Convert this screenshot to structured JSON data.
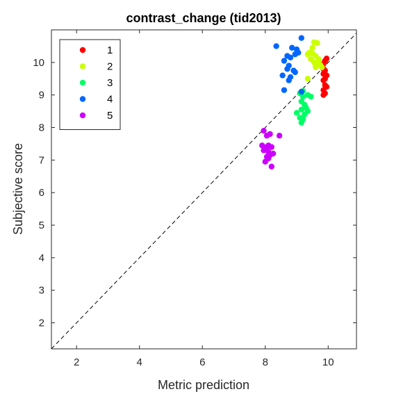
{
  "chart_data": {
    "type": "scatter",
    "title": "contrast_change (tid2013)",
    "xlabel": "Metric prediction",
    "ylabel": "Subjective score",
    "xlim": [
      1.2,
      10.9
    ],
    "ylim": [
      1.2,
      11.0
    ],
    "xticks": [
      2,
      4,
      6,
      8,
      10
    ],
    "yticks": [
      2,
      3,
      4,
      5,
      6,
      7,
      8,
      9,
      10
    ],
    "grid": false,
    "legend_position": "top-left",
    "reference_line": "y = x (dashed)",
    "series": [
      {
        "name": "1",
        "color": "#ff0000",
        "points": [
          [
            9.95,
            10.12
          ],
          [
            9.9,
            10.05
          ],
          [
            9.85,
            9.95
          ],
          [
            9.8,
            9.9
          ],
          [
            9.85,
            9.8
          ],
          [
            9.9,
            9.75
          ],
          [
            9.85,
            9.65
          ],
          [
            9.95,
            9.6
          ],
          [
            9.9,
            9.5
          ],
          [
            9.85,
            9.45
          ],
          [
            9.9,
            9.3
          ],
          [
            9.95,
            9.25
          ],
          [
            9.85,
            9.15
          ],
          [
            9.9,
            9.05
          ],
          [
            9.85,
            9.0
          ]
        ]
      },
      {
        "name": "2",
        "color": "#ccff00",
        "points": [
          [
            9.55,
            10.62
          ],
          [
            9.65,
            10.6
          ],
          [
            9.5,
            10.45
          ],
          [
            9.4,
            10.3
          ],
          [
            9.35,
            10.25
          ],
          [
            9.5,
            10.28
          ],
          [
            9.6,
            10.2
          ],
          [
            9.45,
            10.1
          ],
          [
            9.55,
            10.0
          ],
          [
            9.65,
            9.95
          ],
          [
            9.7,
            10.05
          ],
          [
            9.75,
            9.92
          ],
          [
            9.6,
            9.85
          ],
          [
            9.8,
            9.85
          ],
          [
            9.7,
            10.1
          ],
          [
            9.35,
            9.5
          ]
        ]
      },
      {
        "name": "3",
        "color": "#00ff66",
        "points": [
          [
            9.2,
            9.12
          ],
          [
            9.1,
            9.05
          ],
          [
            9.35,
            9.0
          ],
          [
            9.2,
            8.95
          ],
          [
            9.45,
            8.95
          ],
          [
            9.15,
            8.8
          ],
          [
            9.25,
            8.7
          ],
          [
            9.3,
            8.6
          ],
          [
            9.15,
            8.55
          ],
          [
            9.35,
            8.5
          ],
          [
            9.0,
            8.45
          ],
          [
            9.25,
            8.4
          ],
          [
            9.1,
            8.3
          ],
          [
            9.2,
            8.25
          ],
          [
            9.15,
            8.15
          ]
        ]
      },
      {
        "name": "4",
        "color": "#0066ff",
        "points": [
          [
            9.15,
            10.75
          ],
          [
            8.35,
            10.5
          ],
          [
            8.85,
            10.45
          ],
          [
            9.0,
            10.4
          ],
          [
            8.7,
            10.2
          ],
          [
            8.8,
            10.15
          ],
          [
            8.95,
            10.25
          ],
          [
            8.6,
            10.05
          ],
          [
            8.75,
            9.9
          ],
          [
            8.7,
            9.8
          ],
          [
            8.9,
            9.75
          ],
          [
            8.95,
            9.7
          ],
          [
            8.55,
            9.6
          ],
          [
            8.8,
            9.55
          ],
          [
            8.75,
            9.45
          ],
          [
            9.15,
            9.1
          ],
          [
            8.6,
            9.15
          ],
          [
            9.05,
            10.3
          ]
        ]
      },
      {
        "name": "5",
        "color": "#cc00ff",
        "points": [
          [
            7.95,
            7.9
          ],
          [
            8.05,
            7.75
          ],
          [
            8.15,
            7.8
          ],
          [
            8.45,
            7.75
          ],
          [
            7.9,
            7.45
          ],
          [
            8.05,
            7.4
          ],
          [
            8.1,
            7.45
          ],
          [
            8.2,
            7.4
          ],
          [
            7.95,
            7.3
          ],
          [
            8.1,
            7.25
          ],
          [
            8.15,
            7.15
          ],
          [
            8.25,
            7.2
          ],
          [
            8.05,
            7.1
          ],
          [
            8.0,
            6.95
          ],
          [
            8.1,
            7.05
          ],
          [
            8.2,
            6.8
          ]
        ]
      }
    ]
  }
}
